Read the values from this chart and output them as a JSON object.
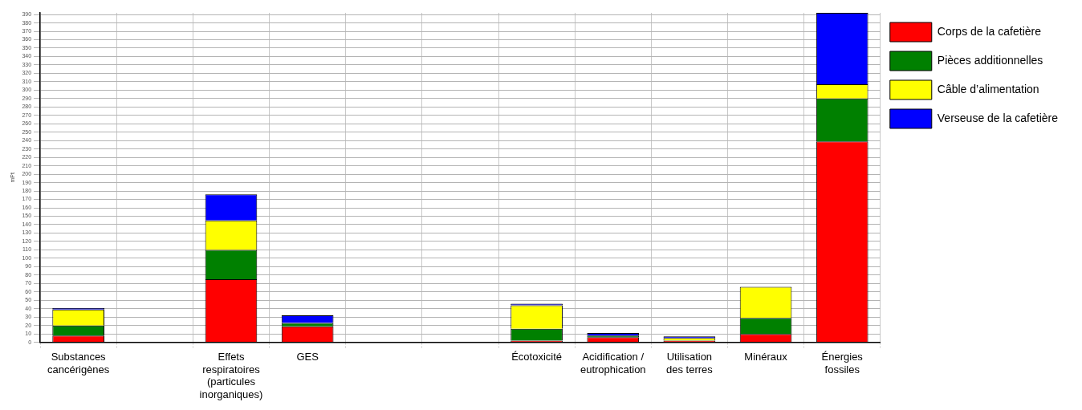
{
  "chart_data": {
    "type": "bar",
    "stacked": true,
    "ylabel": "mPt",
    "categories": [
      "Substances\ncancérigènes",
      null,
      "Effets\nrespiratoires\n(particules\ninorganiques)",
      "GES",
      null,
      null,
      "Écotoxicité",
      "Acidification /\neutrophication",
      "Utilisation\ndes terres",
      "Minéraux",
      "Énergies\nfossiles"
    ],
    "series": [
      {
        "name": "Corps de la cafetière",
        "color": "#ff0000",
        "values": [
          8,
          0,
          75,
          19,
          0,
          0,
          2,
          6,
          2,
          10,
          239
        ]
      },
      {
        "name": "Pièces additionnelles",
        "color": "#008000",
        "values": [
          12,
          0,
          35,
          4,
          0,
          0,
          14,
          2,
          null,
          19,
          51
        ]
      },
      {
        "name": "Câble d’alimentation",
        "color": "#ffff00",
        "values": [
          19,
          0,
          35,
          null,
          0,
          0,
          28,
          null,
          3,
          37,
          17
        ]
      },
      {
        "name": "Verseuse de la cafetière",
        "color": "#0000ff",
        "values": [
          2,
          0,
          31,
          9,
          0,
          0,
          2,
          3,
          2,
          0,
          85
        ]
      }
    ],
    "ylim": [
      0,
      392
    ],
    "yticks": [
      0,
      10,
      20,
      30,
      40,
      50,
      60,
      70,
      80,
      90,
      100,
      110,
      120,
      130,
      140,
      150,
      160,
      170,
      180,
      190,
      200,
      210,
      220,
      230,
      240,
      250,
      260,
      270,
      280,
      290,
      300,
      310,
      320,
      330,
      340,
      350,
      360,
      370,
      380,
      390
    ],
    "grid": true,
    "legend": "right"
  }
}
